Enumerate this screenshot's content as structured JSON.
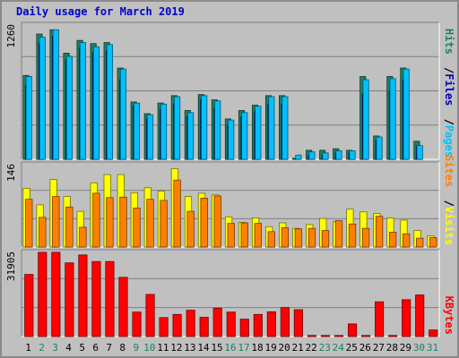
{
  "title": "Daily usage for March 2019",
  "chart_data": [
    {
      "type": "bar",
      "panel": "top",
      "ymax_label": "1260",
      "ylim": [
        0,
        1290
      ],
      "right_legend": [
        {
          "text": "Pages",
          "color": "#00c0ff"
        },
        {
          "text": "Files",
          "color": "#0000c0"
        },
        {
          "text": "Hits",
          "color": "#1e8060"
        }
      ],
      "categories": [
        "1",
        "2",
        "3",
        "4",
        "5",
        "6",
        "7",
        "8",
        "9",
        "10",
        "11",
        "12",
        "13",
        "14",
        "15",
        "16",
        "17",
        "18",
        "19",
        "20",
        "21",
        "22",
        "23",
        "24",
        "25",
        "26",
        "27",
        "28",
        "29",
        "30",
        "31"
      ],
      "series": [
        {
          "name": "Hits",
          "color": "#1e8060",
          "values": [
            790,
            1180,
            1220,
            1000,
            1120,
            1090,
            1100,
            860,
            540,
            430,
            530,
            600,
            460,
            610,
            560,
            380,
            460,
            510,
            600,
            600,
            10,
            85,
            85,
            100,
            85,
            780,
            220,
            780,
            860,
            170,
            0
          ]
        },
        {
          "name": "Files",
          "color": "#0000c0",
          "values": [
            690,
            1090,
            1160,
            940,
            1050,
            1010,
            1020,
            750,
            500,
            380,
            470,
            520,
            400,
            560,
            480,
            320,
            400,
            450,
            520,
            520,
            5,
            40,
            40,
            60,
            60,
            620,
            180,
            650,
            750,
            120,
            0
          ]
        },
        {
          "name": "Pages",
          "color": "#00c0ff",
          "values": [
            780,
            1150,
            1220,
            970,
            1100,
            1060,
            1080,
            850,
            530,
            420,
            520,
            590,
            440,
            600,
            550,
            370,
            440,
            500,
            590,
            590,
            40,
            70,
            60,
            80,
            80,
            750,
            210,
            760,
            850,
            130,
            0
          ]
        }
      ]
    },
    {
      "type": "bar",
      "panel": "middle",
      "ymax_label": "146",
      "ylim": [
        0,
        155
      ],
      "right_legend": [
        {
          "text": "Visits",
          "color": "#ffff00"
        },
        {
          "text": "Sites",
          "color": "#ff8000"
        }
      ],
      "categories": [
        "1",
        "2",
        "3",
        "4",
        "5",
        "6",
        "7",
        "8",
        "9",
        "10",
        "11",
        "12",
        "13",
        "14",
        "15",
        "16",
        "17",
        "18",
        "19",
        "20",
        "21",
        "22",
        "23",
        "24",
        "25",
        "26",
        "27",
        "28",
        "29",
        "30",
        "31"
      ],
      "series": [
        {
          "name": "Visits",
          "color": "#ffff00",
          "values": [
            107,
            77,
            123,
            92,
            65,
            117,
            132,
            132,
            99,
            108,
            102,
            143,
            92,
            98,
            95,
            55,
            45,
            53,
            37,
            44,
            34,
            41,
            52,
            46,
            69,
            64,
            61,
            53,
            49,
            30,
            20
          ]
        },
        {
          "name": "Sites",
          "color": "#ff8000",
          "values": [
            87,
            54,
            92,
            73,
            36,
            98,
            90,
            91,
            71,
            87,
            85,
            122,
            65,
            89,
            93,
            43,
            44,
            43,
            28,
            35,
            33,
            34,
            30,
            48,
            42,
            34,
            56,
            27,
            24,
            16,
            17
          ]
        }
      ]
    },
    {
      "type": "bar",
      "panel": "bottom",
      "ymax_label": "31905",
      "ylim": [
        0,
        33000
      ],
      "right_legend": [
        {
          "text": "KBytes",
          "color": "#ff0000"
        }
      ],
      "categories": [
        "1",
        "2",
        "3",
        "4",
        "5",
        "6",
        "7",
        "8",
        "9",
        "10",
        "11",
        "12",
        "13",
        "14",
        "15",
        "16",
        "17",
        "18",
        "19",
        "20",
        "21",
        "22",
        "23",
        "24",
        "25",
        "26",
        "27",
        "28",
        "29",
        "30",
        "31"
      ],
      "series": [
        {
          "name": "KBytes",
          "color": "#ff0000",
          "values": [
            23600,
            32000,
            32000,
            28000,
            31000,
            28500,
            28500,
            22500,
            9300,
            16000,
            7200,
            8400,
            10000,
            7300,
            10800,
            9300,
            6600,
            8400,
            9400,
            11000,
            10200,
            400,
            400,
            400,
            4800,
            400,
            13200,
            400,
            14000,
            15800,
            2500
          ]
        }
      ]
    }
  ],
  "x_labels": [
    {
      "text": "1",
      "color": "#000000"
    },
    {
      "text": "2",
      "color": "#1e8060"
    },
    {
      "text": "3",
      "color": "#1e8060"
    },
    {
      "text": "4",
      "color": "#000000"
    },
    {
      "text": "5",
      "color": "#000000"
    },
    {
      "text": "6",
      "color": "#000000"
    },
    {
      "text": "7",
      "color": "#000000"
    },
    {
      "text": "8",
      "color": "#000000"
    },
    {
      "text": "9",
      "color": "#1e8060"
    },
    {
      "text": "10",
      "color": "#1e8060"
    },
    {
      "text": "11",
      "color": "#000000"
    },
    {
      "text": "12",
      "color": "#000000"
    },
    {
      "text": "13",
      "color": "#000000"
    },
    {
      "text": "14",
      "color": "#000000"
    },
    {
      "text": "15",
      "color": "#000000"
    },
    {
      "text": "16",
      "color": "#1e8060"
    },
    {
      "text": "17",
      "color": "#1e8060"
    },
    {
      "text": "18",
      "color": "#000000"
    },
    {
      "text": "19",
      "color": "#000000"
    },
    {
      "text": "20",
      "color": "#000000"
    },
    {
      "text": "21",
      "color": "#000000"
    },
    {
      "text": "22",
      "color": "#000000"
    },
    {
      "text": "23",
      "color": "#1e8060"
    },
    {
      "text": "24",
      "color": "#1e8060"
    },
    {
      "text": "25",
      "color": "#000000"
    },
    {
      "text": "26",
      "color": "#000000"
    },
    {
      "text": "27",
      "color": "#000000"
    },
    {
      "text": "28",
      "color": "#000000"
    },
    {
      "text": "29",
      "color": "#000000"
    },
    {
      "text": "30",
      "color": "#1e8060"
    },
    {
      "text": "31",
      "color": "#1e8060"
    }
  ],
  "colors": {
    "background": "#c0c0c0",
    "gridline": "#808080",
    "axis_text": "#000000",
    "title": "#0000cc"
  }
}
